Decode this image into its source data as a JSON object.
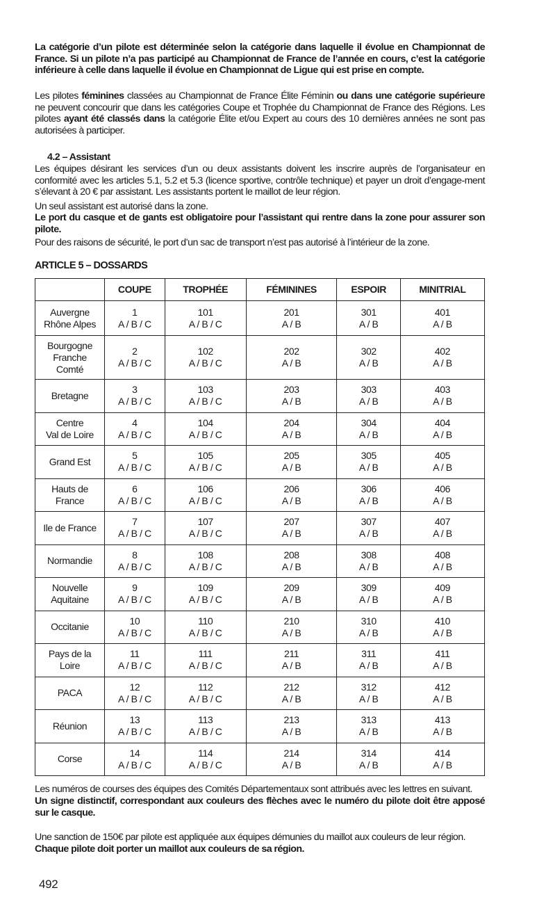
{
  "paragraphs": {
    "p1": "La catégorie d’un pilote est déterminée selon la catégorie dans laquelle il évolue en Championnat de France. Si un pilote n’a pas participé au Championnat de France de l’année en cours, c’est la catégorie inférieure à celle dans laquelle il évolue en Championnat de Ligue qui est prise en compte.",
    "p2a": "Les pilotes ",
    "p2b": "féminines",
    "p2c": " classées au Championnat de France Élite Féminin ",
    "p2d": "ou dans une catégorie supérieure",
    "p2e": " ne peuvent concourir que dans les catégories Coupe et Trophée du Championnat de France des Régions. Les pilotes ",
    "p2f": "ayant été classés dans",
    "p2g": " la catégorie Élite et/ou Expert au cours des 10 dernières années ne sont pas autorisées à participer.",
    "s42_title": "4.2 – Assistant",
    "s42_p1": "Les équipes désirant les services d’un ou deux assistants doivent les inscrire auprès de l’organisateur en conformité avec les articles 5.1, 5.2 et 5.3 (licence sportive, contrôle technique) et payer un droit d’engage-ment s’élevant à 20 € par assistant. Les assistants portent le maillot de leur région.",
    "s42_p2": "Un seul assistant est autorisé dans la zone.",
    "s42_p3": "Le port du casque et de gants est obligatoire pour l’assistant qui rentre dans la zone pour assurer son pilote.",
    "s42_p4": "Pour des raisons de sécurité, le port d’un sac de transport n’est pas autorisé à l’intérieur de la zone.",
    "article5": "ARTICLE 5 – DOSSARDS",
    "after1": "Les numéros de courses des équipes des Comités Départementaux sont attribués avec les lettres en suivant.",
    "after2": "Un signe distinctif, correspondant aux couleurs des flèches avec le numéro du pilote doit être apposé sur le casque.",
    "after3": "Une sanction de 150€ par pilote est appliquée aux équipes démunies du maillot aux couleurs de leur région.",
    "after4": "Chaque pilote doit porter un maillot aux couleurs de sa région."
  },
  "table": {
    "headers": [
      "",
      "COUPE",
      "TROPHÉE",
      "FÉMININES",
      "ESPOIR",
      "MINITRIAL"
    ],
    "rows": [
      {
        "region": [
          "Auvergne",
          "Rhône Alpes"
        ],
        "cells": [
          [
            "1",
            "A / B / C"
          ],
          [
            "101",
            "A / B / C"
          ],
          [
            "201",
            "A / B"
          ],
          [
            "301",
            "A / B"
          ],
          [
            "401",
            "A / B"
          ]
        ]
      },
      {
        "region": [
          "Bourgogne",
          "Franche",
          "Comté"
        ],
        "cells": [
          [
            "2",
            "A / B / C"
          ],
          [
            "102",
            "A / B / C"
          ],
          [
            "202",
            "A / B"
          ],
          [
            "302",
            "A / B"
          ],
          [
            "402",
            "A / B"
          ]
        ]
      },
      {
        "region": [
          "Bretagne"
        ],
        "cells": [
          [
            "3",
            "A / B / C"
          ],
          [
            "103",
            "A / B / C"
          ],
          [
            "203",
            "A / B"
          ],
          [
            "303",
            "A / B"
          ],
          [
            "403",
            "A / B"
          ]
        ]
      },
      {
        "region": [
          "Centre",
          "Val de Loire"
        ],
        "cells": [
          [
            "4",
            "A / B / C"
          ],
          [
            "104",
            "A / B / C"
          ],
          [
            "204",
            "A / B"
          ],
          [
            "304",
            "A / B"
          ],
          [
            "404",
            "A / B"
          ]
        ]
      },
      {
        "region": [
          "Grand Est"
        ],
        "cells": [
          [
            "5",
            "A / B / C"
          ],
          [
            "105",
            "A / B / C"
          ],
          [
            "205",
            "A / B"
          ],
          [
            "305",
            "A / B"
          ],
          [
            "405",
            "A / B"
          ]
        ]
      },
      {
        "region": [
          "Hauts de",
          "France"
        ],
        "cells": [
          [
            "6",
            "A / B / C"
          ],
          [
            "106",
            "A / B / C"
          ],
          [
            "206",
            "A / B"
          ],
          [
            "306",
            "A / B"
          ],
          [
            "406",
            "A / B"
          ]
        ]
      },
      {
        "region": [
          "Ile de France"
        ],
        "cells": [
          [
            "7",
            "A / B / C"
          ],
          [
            "107",
            "A / B / C"
          ],
          [
            "207",
            "A / B"
          ],
          [
            "307",
            "A / B"
          ],
          [
            "407",
            "A / B"
          ]
        ]
      },
      {
        "region": [
          "Normandie"
        ],
        "cells": [
          [
            "8",
            "A / B / C"
          ],
          [
            "108",
            "A / B / C"
          ],
          [
            "208",
            "A / B"
          ],
          [
            "308",
            "A / B"
          ],
          [
            "408",
            "A / B"
          ]
        ]
      },
      {
        "region": [
          "Nouvelle",
          "Aquitaine"
        ],
        "cells": [
          [
            "9",
            "A / B / C"
          ],
          [
            "109",
            "A / B / C"
          ],
          [
            "209",
            "A / B"
          ],
          [
            "309",
            "A / B"
          ],
          [
            "409",
            "A / B"
          ]
        ]
      },
      {
        "region": [
          "Occitanie"
        ],
        "cells": [
          [
            "10",
            "A / B / C"
          ],
          [
            "110",
            "A / B / C"
          ],
          [
            "210",
            "A / B"
          ],
          [
            "310",
            "A / B"
          ],
          [
            "410",
            "A / B"
          ]
        ]
      },
      {
        "region": [
          "Pays de la",
          "Loire"
        ],
        "cells": [
          [
            "11",
            "A / B / C"
          ],
          [
            "111",
            "A / B / C"
          ],
          [
            "211",
            "A / B"
          ],
          [
            "311",
            "A / B"
          ],
          [
            "411",
            "A / B"
          ]
        ]
      },
      {
        "region": [
          "PACA"
        ],
        "cells": [
          [
            "12",
            "A / B / C"
          ],
          [
            "112",
            "A / B / C"
          ],
          [
            "212",
            "A / B"
          ],
          [
            "312",
            "A / B"
          ],
          [
            "412",
            "A / B"
          ]
        ]
      },
      {
        "region": [
          "Réunion"
        ],
        "cells": [
          [
            "13",
            "A / B / C"
          ],
          [
            "113",
            "A / B / C"
          ],
          [
            "213",
            "A / B"
          ],
          [
            "313",
            "A / B"
          ],
          [
            "413",
            "A / B"
          ]
        ]
      },
      {
        "region": [
          "Corse"
        ],
        "cells": [
          [
            "14",
            "A / B / C"
          ],
          [
            "114",
            "A / B / C"
          ],
          [
            "214",
            "A / B"
          ],
          [
            "314",
            "A / B"
          ],
          [
            "414",
            "A / B"
          ]
        ]
      }
    ]
  },
  "page_number": "492"
}
